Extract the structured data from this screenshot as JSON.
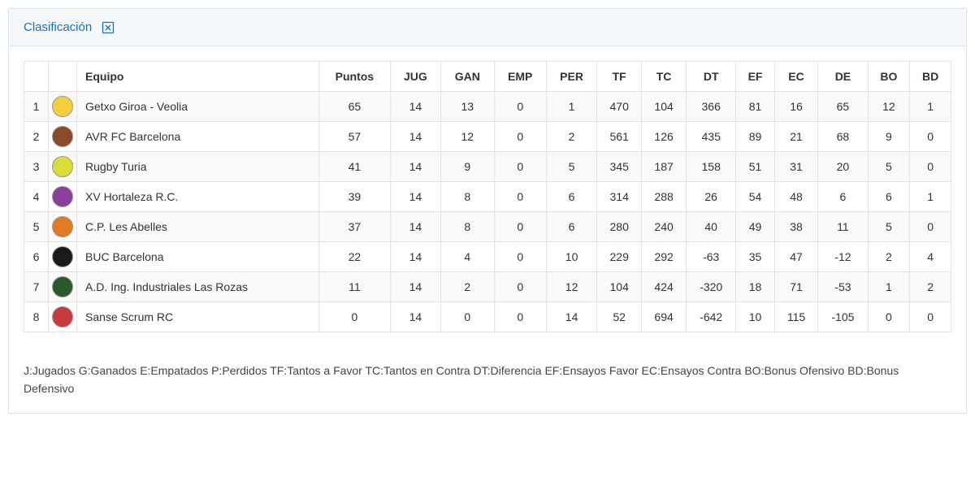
{
  "header": {
    "title": "Clasificación"
  },
  "columns": [
    "",
    "",
    "Equipo",
    "Puntos",
    "JUG",
    "GAN",
    "EMP",
    "PER",
    "TF",
    "TC",
    "DT",
    "EF",
    "EC",
    "DE",
    "BO",
    "BD"
  ],
  "rows": [
    {
      "rank": 1,
      "logo_bg": "#f3cf3a",
      "team": "Getxo Giroa - Veolia",
      "puntos": 65,
      "jug": 14,
      "gan": 13,
      "emp": 0,
      "per": 1,
      "tf": 470,
      "tc": 104,
      "dt": 366,
      "ef": 81,
      "ec": 16,
      "de": 65,
      "bo": 12,
      "bd": 1
    },
    {
      "rank": 2,
      "logo_bg": "#8a4a2a",
      "team": "AVR FC Barcelona",
      "puntos": 57,
      "jug": 14,
      "gan": 12,
      "emp": 0,
      "per": 2,
      "tf": 561,
      "tc": 126,
      "dt": 435,
      "ef": 89,
      "ec": 21,
      "de": 68,
      "bo": 9,
      "bd": 0
    },
    {
      "rank": 3,
      "logo_bg": "#d8dd3a",
      "team": "Rugby Turia",
      "puntos": 41,
      "jug": 14,
      "gan": 9,
      "emp": 0,
      "per": 5,
      "tf": 345,
      "tc": 187,
      "dt": 158,
      "ef": 51,
      "ec": 31,
      "de": 20,
      "bo": 5,
      "bd": 0
    },
    {
      "rank": 4,
      "logo_bg": "#8a3fa0",
      "team": "XV Hortaleza R.C.",
      "puntos": 39,
      "jug": 14,
      "gan": 8,
      "emp": 0,
      "per": 6,
      "tf": 314,
      "tc": 288,
      "dt": 26,
      "ef": 54,
      "ec": 48,
      "de": 6,
      "bo": 6,
      "bd": 1
    },
    {
      "rank": 5,
      "logo_bg": "#e07b1f",
      "team": "C.P. Les Abelles",
      "puntos": 37,
      "jug": 14,
      "gan": 8,
      "emp": 0,
      "per": 6,
      "tf": 280,
      "tc": 240,
      "dt": 40,
      "ef": 49,
      "ec": 38,
      "de": 11,
      "bo": 5,
      "bd": 0
    },
    {
      "rank": 6,
      "logo_bg": "#1a1a1a",
      "team": "BUC Barcelona",
      "puntos": 22,
      "jug": 14,
      "gan": 4,
      "emp": 0,
      "per": 10,
      "tf": 229,
      "tc": 292,
      "dt": -63,
      "ef": 35,
      "ec": 47,
      "de": -12,
      "bo": 2,
      "bd": 4
    },
    {
      "rank": 7,
      "logo_bg": "#2a5a2a",
      "team": "A.D. Ing. Industriales Las Rozas",
      "puntos": 11,
      "jug": 14,
      "gan": 2,
      "emp": 0,
      "per": 12,
      "tf": 104,
      "tc": 424,
      "dt": -320,
      "ef": 18,
      "ec": 71,
      "de": -53,
      "bo": 1,
      "bd": 2
    },
    {
      "rank": 8,
      "logo_bg": "#c93a3a",
      "team": "Sanse Scrum RC",
      "puntos": 0,
      "jug": 14,
      "gan": 0,
      "emp": 0,
      "per": 14,
      "tf": 52,
      "tc": 694,
      "dt": -642,
      "ef": 10,
      "ec": 115,
      "de": -105,
      "bo": 0,
      "bd": 0
    }
  ],
  "legend": "J:Jugados G:Ganados E:Empatados P:Perdidos TF:Tantos a Favor TC:Tantos en Contra DT:Diferencia EF:Ensayos Favor EC:Ensayos Contra BO:Bonus Ofensivo BD:Bonus Defensivo"
}
